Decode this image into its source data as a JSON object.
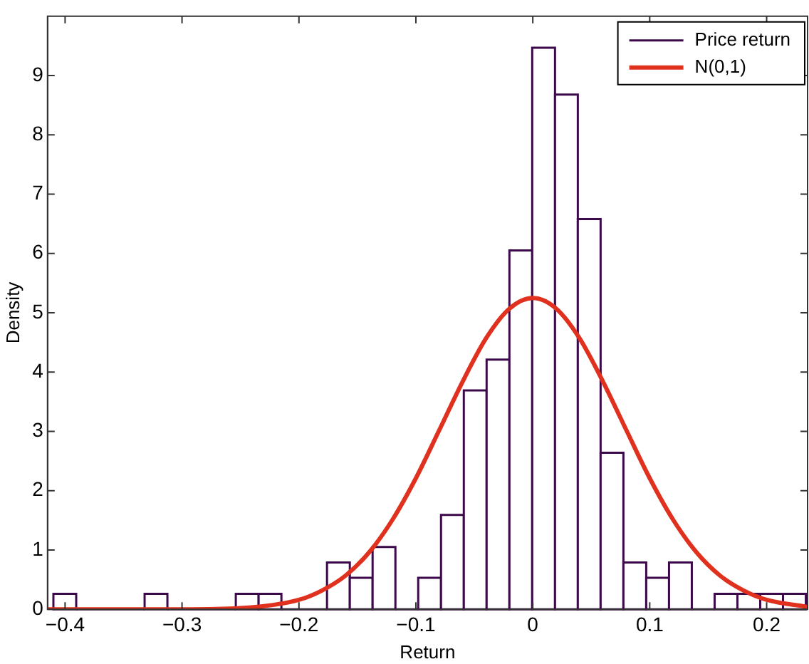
{
  "chart_data": {
    "type": "histogram",
    "xlabel": "Return",
    "ylabel": "Density",
    "xlim": [
      -0.415,
      0.235
    ],
    "ylim": [
      0,
      10
    ],
    "xticks": [
      {
        "value": -0.4,
        "label": "−0.4"
      },
      {
        "value": -0.3,
        "label": "−0.3"
      },
      {
        "value": -0.2,
        "label": "−0.2"
      },
      {
        "value": -0.1,
        "label": "−0.1"
      },
      0,
      0.1,
      0.2
    ],
    "yticks": [
      0,
      1,
      2,
      3,
      4,
      5,
      6,
      7,
      8,
      9
    ],
    "grid": false,
    "legend": "top right",
    "series": [
      {
        "name": "Price return",
        "color": "#3c0a4a",
        "bins": [
          -0.41,
          -0.3905,
          -0.371,
          -0.3515,
          -0.332,
          -0.3125,
          -0.293,
          -0.2735,
          -0.254,
          -0.2345,
          -0.215,
          -0.1955,
          -0.176,
          -0.1565,
          -0.137,
          -0.1175,
          -0.098,
          -0.0785,
          -0.059,
          -0.0395,
          -0.02,
          -0.0005,
          0.019,
          0.0385,
          0.058,
          0.0775,
          0.097,
          0.1165,
          0.136,
          0.1555,
          0.175,
          0.1945,
          0.214,
          0.2335
        ],
        "values": [
          0.26,
          0,
          0,
          0,
          0.26,
          0,
          0,
          0,
          0.26,
          0.26,
          0,
          0,
          0.79,
          0.53,
          1.05,
          0,
          0.53,
          1.59,
          3.69,
          4.21,
          6.05,
          9.47,
          8.68,
          6.58,
          2.64,
          0.79,
          0.53,
          0.79,
          0,
          0.26,
          0.26,
          0.26,
          0.26
        ]
      },
      {
        "type": "line",
        "name": "N(0,1)",
        "color": "#e0301e",
        "x": [
          -0.415,
          -0.3,
          -0.25,
          -0.2,
          -0.18,
          -0.16,
          -0.14,
          -0.12,
          -0.1,
          -0.08,
          -0.06,
          -0.04,
          -0.02,
          0,
          0.02,
          0.04,
          0.06,
          0.08,
          0.1,
          0.12,
          0.14,
          0.16,
          0.18,
          0.2,
          0.235
        ],
        "values": [
          0,
          0,
          0.02,
          0.16,
          0.32,
          0.57,
          0.96,
          1.51,
          2.21,
          3.02,
          3.84,
          4.57,
          5.07,
          5.25,
          5.07,
          4.57,
          3.84,
          3.02,
          2.21,
          1.51,
          0.96,
          0.57,
          0.32,
          0.16,
          0.04
        ]
      }
    ]
  }
}
